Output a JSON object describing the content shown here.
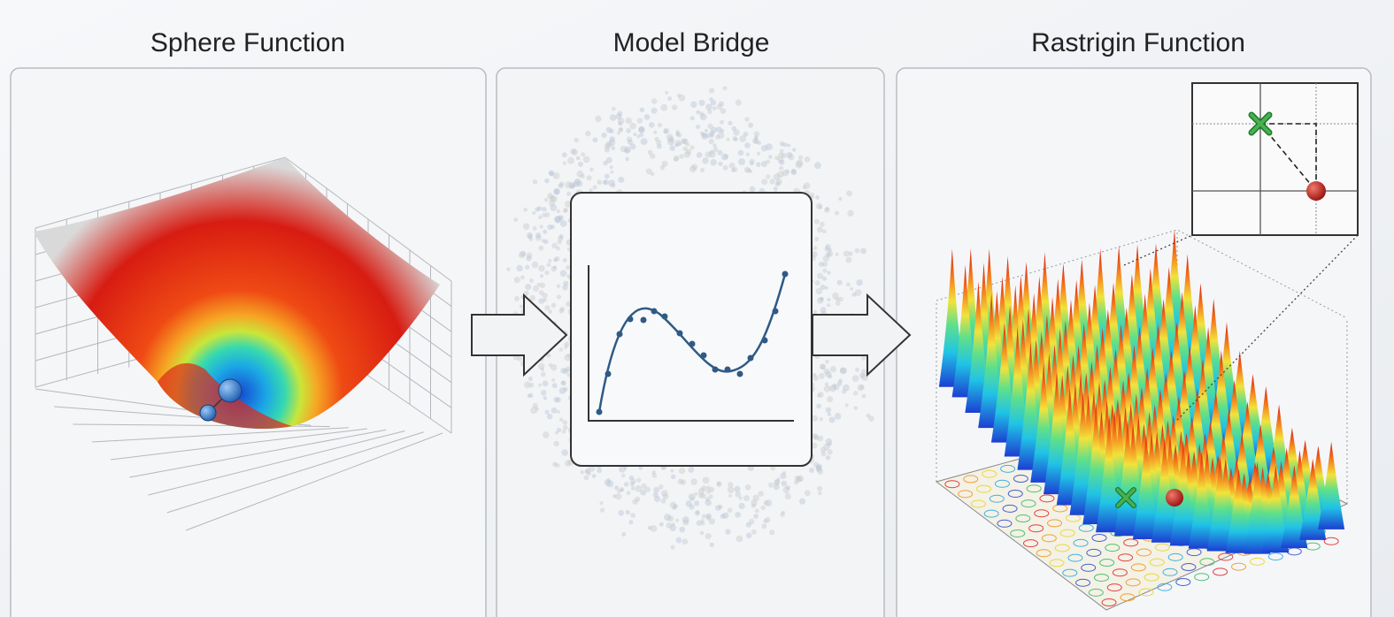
{
  "panels": [
    {
      "title": "Sphere Function"
    },
    {
      "title": "Model Bridge"
    },
    {
      "title": "Rastrigin Function"
    }
  ]
}
